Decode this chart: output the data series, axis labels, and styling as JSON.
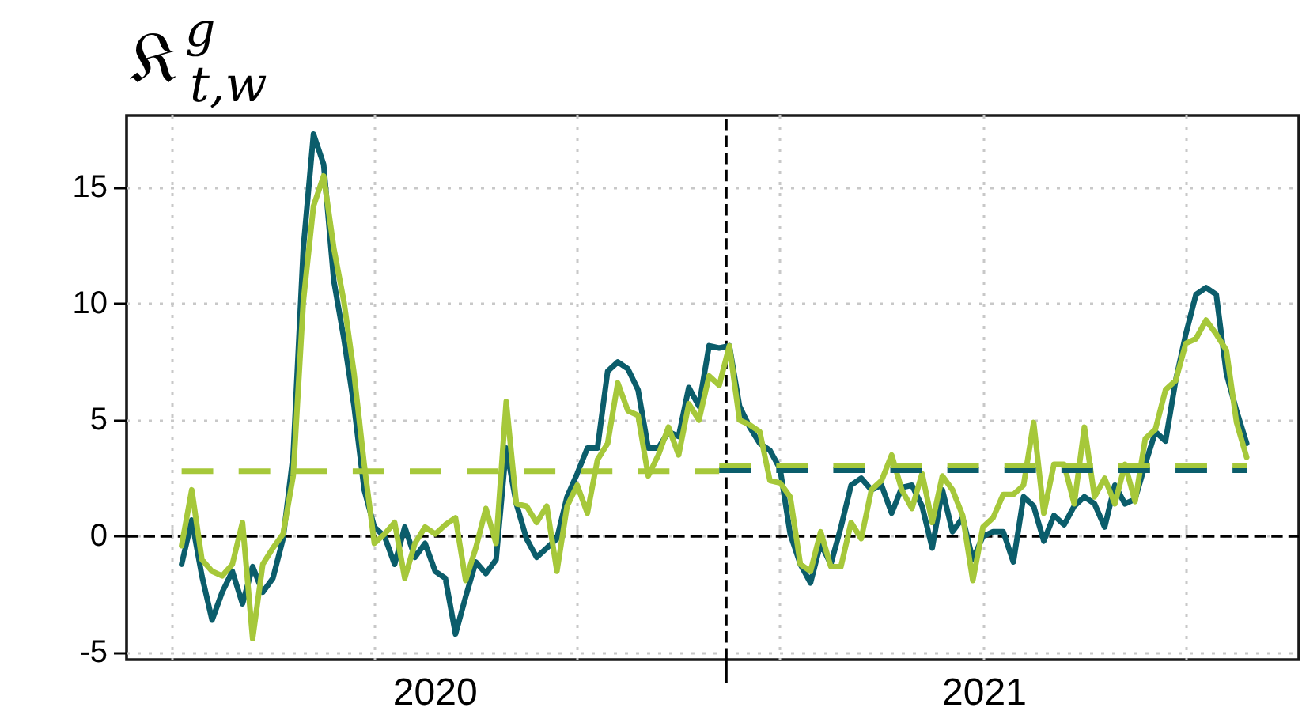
{
  "chart_data": {
    "type": "line",
    "ylabel": "𝔎$^{g}$$_{t,w}$",
    "x": [
      "2019-12-23",
      "2019-12-30",
      "2020-01-06",
      "2020-01-13",
      "2020-01-20",
      "2020-01-27",
      "2020-02-03",
      "2020-02-10",
      "2020-02-17",
      "2020-02-24",
      "2020-03-02",
      "2020-03-09",
      "2020-03-16",
      "2020-03-23",
      "2020-03-30",
      "2020-04-06",
      "2020-04-13",
      "2020-04-20",
      "2020-04-27",
      "2020-05-04",
      "2020-05-11",
      "2020-05-18",
      "2020-05-25",
      "2020-06-01",
      "2020-06-08",
      "2020-06-15",
      "2020-06-22",
      "2020-06-29",
      "2020-07-06",
      "2020-07-13",
      "2020-07-20",
      "2020-07-27",
      "2020-08-03",
      "2020-08-10",
      "2020-08-17",
      "2020-08-24",
      "2020-08-31",
      "2020-09-07",
      "2020-09-14",
      "2020-09-21",
      "2020-09-28",
      "2020-10-05",
      "2020-10-12",
      "2020-10-19",
      "2020-10-26",
      "2020-11-02",
      "2020-11-09",
      "2020-11-16",
      "2020-11-23",
      "2020-11-30",
      "2020-12-07",
      "2020-12-14",
      "2020-12-21",
      "2020-12-28",
      "2021-01-04",
      "2021-01-11",
      "2021-01-18",
      "2021-01-25",
      "2021-02-01",
      "2021-02-08",
      "2021-02-15",
      "2021-02-22",
      "2021-03-01",
      "2021-03-08",
      "2021-03-15",
      "2021-03-22",
      "2021-03-29",
      "2021-04-05",
      "2021-04-12",
      "2021-04-19",
      "2021-04-26",
      "2021-05-03",
      "2021-05-10",
      "2021-05-17",
      "2021-05-24",
      "2021-05-31",
      "2021-06-07",
      "2021-06-14",
      "2021-06-21",
      "2021-06-28",
      "2021-07-05",
      "2021-07-12",
      "2021-07-19",
      "2021-07-26",
      "2021-08-02",
      "2021-08-09",
      "2021-08-16",
      "2021-08-23",
      "2021-08-30",
      "2021-09-06",
      "2021-09-13",
      "2021-09-20",
      "2021-09-27",
      "2021-10-04",
      "2021-10-11",
      "2021-10-18",
      "2021-10-25",
      "2021-11-01",
      "2021-11-08",
      "2021-11-15",
      "2021-11-22",
      "2021-11-29",
      "2021-12-06",
      "2021-12-13",
      "2021-12-20",
      "2021-12-27"
    ],
    "series": [
      {
        "color": "#0b5d6b",
        "values": [
          -1.2,
          0.7,
          -1.7,
          -3.6,
          -2.4,
          -1.5,
          -2.9,
          -1.3,
          -2.4,
          -1.8,
          -0.1,
          3.5,
          12.4,
          17.3,
          16.0,
          11.0,
          8.5,
          5.6,
          2.0,
          0.4,
          0.0,
          -1.2,
          0.4,
          -0.9,
          -0.3,
          -1.5,
          -1.8,
          -4.2,
          -2.6,
          -1.1,
          -1.6,
          -1.0,
          3.8,
          1.4,
          -0.1,
          -0.9,
          -0.5,
          -0.1,
          1.7,
          2.7,
          3.8,
          3.8,
          7.1,
          7.5,
          7.2,
          6.3,
          3.8,
          3.8,
          4.5,
          4.3,
          6.4,
          5.6,
          8.2,
          8.1,
          8.2,
          5.6,
          4.7,
          4.0,
          3.7,
          2.9,
          0.1,
          -1.2,
          -2.0,
          -0.3,
          -1.2,
          0.4,
          2.2,
          2.5,
          2.0,
          2.2,
          1.0,
          2.1,
          2.2,
          1.3,
          -0.5,
          2.0,
          0.2,
          0.8,
          -1.0,
          0.0,
          0.2,
          0.2,
          -1.1,
          1.7,
          1.3,
          -0.2,
          0.9,
          0.5,
          1.3,
          1.7,
          1.4,
          0.4,
          2.2,
          1.4,
          1.6,
          3.1,
          4.5,
          4.1,
          6.7,
          8.7,
          10.4,
          10.7,
          10.4,
          7.0,
          5.4,
          4.0
        ]
      },
      {
        "color": "#a6c83a",
        "values": [
          -0.4,
          2.0,
          -1.0,
          -1.5,
          -1.7,
          -1.2,
          0.6,
          -4.4,
          -1.2,
          -0.5,
          0.1,
          2.6,
          10.1,
          14.2,
          15.5,
          12.4,
          10.1,
          7.0,
          3.1,
          -0.3,
          0.1,
          0.6,
          -1.8,
          -0.3,
          0.4,
          0.1,
          0.5,
          0.8,
          -1.9,
          -0.5,
          1.2,
          -0.3,
          5.8,
          1.4,
          1.3,
          0.6,
          1.3,
          -1.5,
          1.3,
          2.2,
          1.0,
          3.3,
          4.0,
          6.6,
          5.4,
          5.2,
          2.6,
          3.5,
          4.7,
          3.5,
          5.7,
          5.0,
          6.9,
          6.5,
          8.2,
          5.0,
          4.8,
          4.5,
          2.4,
          2.3,
          1.7,
          -1.2,
          -1.5,
          0.2,
          -1.3,
          -1.3,
          0.6,
          -0.1,
          2.0,
          2.4,
          3.5,
          2.0,
          1.2,
          2.7,
          0.6,
          2.6,
          2.0,
          0.9,
          -1.9,
          0.4,
          0.8,
          1.8,
          1.8,
          2.2,
          4.9,
          1.0,
          3.1,
          3.1,
          1.4,
          4.7,
          1.7,
          2.5,
          1.4,
          3.1,
          1.5,
          4.2,
          4.6,
          6.3,
          6.7,
          8.3,
          8.5,
          9.3,
          8.7,
          8.0,
          4.9,
          3.4
        ]
      },
      {
        "color": "#a6c83a",
        "line_style": "dashed",
        "x": [
          "2019-12-23",
          "2020-12-28"
        ],
        "values": [
          2.8,
          2.8
        ]
      },
      {
        "color": "#0b5d6b",
        "line_style": "dashed",
        "x": [
          "2020-12-28",
          "2021-12-27"
        ],
        "values": [
          2.85,
          2.85
        ]
      },
      {
        "color": "#a6c83a",
        "line_style": "dashed",
        "x": [
          "2020-12-28",
          "2021-12-27"
        ],
        "values": [
          3.05,
          3.05
        ]
      }
    ],
    "xlim": [
      "2019-11-15",
      "2022-02-01"
    ],
    "xticks": [
      {
        "value": "2019-12-16",
        "label": null
      },
      {
        "value": "2020-05-04",
        "label": null
      },
      {
        "value": "2020-06-15",
        "label": "2020"
      },
      {
        "value": "2020-09-21",
        "label": null
      },
      {
        "value": "2021-02-08",
        "label": null
      },
      {
        "value": "2021-06-28",
        "label": null
      },
      {
        "value": "2021-06-29",
        "label": "2021"
      },
      {
        "value": "2021-11-15",
        "label": null
      }
    ],
    "ylim": [
      -5.3,
      18.1
    ],
    "yticks": [
      -5,
      0,
      5,
      10,
      15
    ],
    "grid": true,
    "marker": "none",
    "line_style": "solid",
    "ref_lines": [
      {
        "axis": "y",
        "value": 0,
        "color": "#000000",
        "line_style": "dashed"
      },
      {
        "axis": "x",
        "value": "2021-01-01",
        "color": "#000000",
        "line_style": "dashed"
      }
    ]
  }
}
